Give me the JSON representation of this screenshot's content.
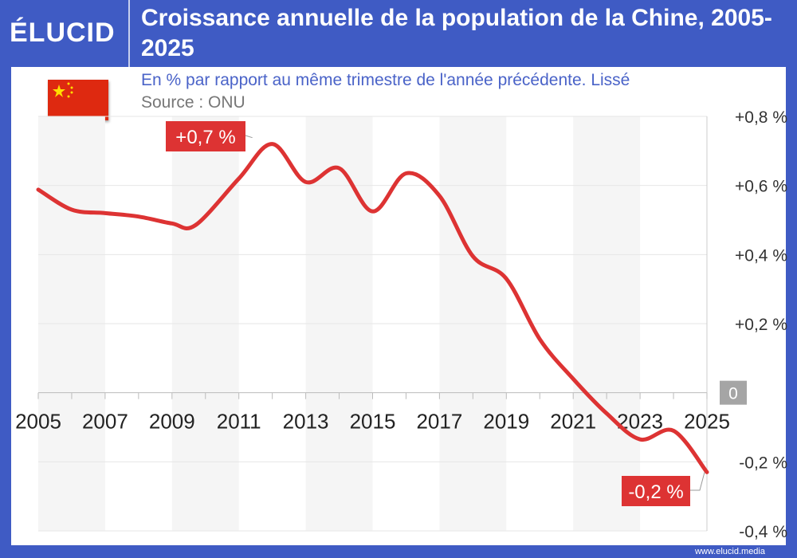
{
  "brand": {
    "logo": "ÉLUCID",
    "url": "www.elucid.media",
    "accent": "#3f5bc4",
    "line_color": "#dd3333"
  },
  "flag": "china-flag",
  "chart_data": {
    "type": "line",
    "title": "Croissance annuelle de la population de la Chine, 2005-2025",
    "subtitle": "En % par rapport au même trimestre de l'année précédente. Lissé",
    "source": "Source : ONU",
    "xlim": [
      2005,
      2025
    ],
    "ylim": [
      -0.4,
      0.8
    ],
    "x_tick_labels": [
      "2005",
      "2007",
      "2009",
      "2011",
      "2013",
      "2015",
      "2017",
      "2019",
      "2021",
      "2023",
      "2025"
    ],
    "y_ticks": [
      {
        "v": 0.8,
        "label": "+0,8 %"
      },
      {
        "v": 0.6,
        "label": "+0,6 %"
      },
      {
        "v": 0.4,
        "label": "+0,4 %"
      },
      {
        "v": 0.2,
        "label": "+0,2 %"
      },
      {
        "v": 0,
        "label": "0"
      },
      {
        "v": -0.2,
        "label": "-0,2 %"
      },
      {
        "v": -0.4,
        "label": "-0,4 %"
      }
    ],
    "grid": true,
    "series": [
      {
        "x": [
          2005,
          2006,
          2007,
          2008,
          2009,
          2009.7,
          2011,
          2012,
          2013,
          2014,
          2015,
          2016,
          2017,
          2018,
          2019,
          2020,
          2021,
          2022,
          2023,
          2024,
          2025
        ],
        "y": [
          0.588,
          0.53,
          0.52,
          0.51,
          0.49,
          0.485,
          0.62,
          0.72,
          0.61,
          0.65,
          0.525,
          0.635,
          0.57,
          0.395,
          0.33,
          0.155,
          0.04,
          -0.06,
          -0.135,
          -0.11,
          -0.23
        ]
      }
    ],
    "annotations": [
      {
        "x": 2012,
        "y": 0.72,
        "label": "+0,7 %"
      },
      {
        "x": 2025,
        "y": -0.23,
        "label": "-0,2 %"
      }
    ]
  }
}
